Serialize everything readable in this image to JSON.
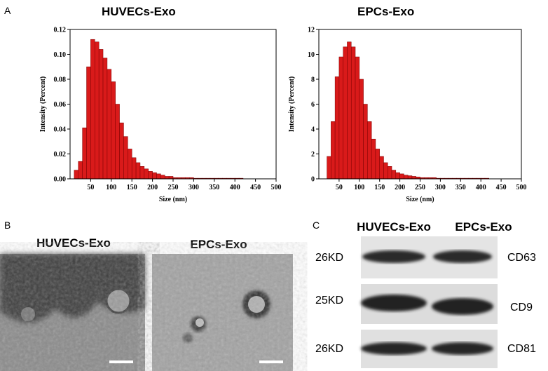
{
  "panel_labels": [
    "A",
    "B",
    "C"
  ],
  "chart_data": [
    {
      "type": "histogram",
      "title": "HUVECs-Exo",
      "xlabel": "Size (nm)",
      "ylabel": "Intensity (Percent)",
      "color": "#d91a1a",
      "bins": [
        10,
        20,
        30,
        40,
        50,
        60,
        70,
        80,
        90,
        100,
        110,
        120,
        130,
        140,
        150,
        160,
        170,
        180,
        190,
        200,
        210,
        220,
        230,
        240,
        250,
        260,
        270,
        280,
        290,
        300,
        310,
        320,
        330,
        340,
        350,
        360,
        370,
        380,
        390,
        400,
        410,
        420
      ],
      "values": [
        0.007,
        0.014,
        0.041,
        0.09,
        0.112,
        0.11,
        0.104,
        0.097,
        0.088,
        0.078,
        0.06,
        0.045,
        0.034,
        0.024,
        0.017,
        0.013,
        0.01,
        0.008,
        0.006,
        0.005,
        0.004,
        0.003,
        0.002,
        0.002,
        0.001,
        0.001,
        0.001,
        0.001,
        0.001,
        0.0005,
        0.0005,
        0.0005,
        0.0005,
        0.0005,
        0.0005,
        0.0005,
        0.0005,
        0.0005,
        0.0005,
        0.0005,
        0.0005
      ],
      "xlim": [
        0,
        500
      ],
      "xticks": [
        50,
        100,
        150,
        200,
        250,
        300,
        350,
        400,
        450,
        500
      ],
      "ylim": [
        0,
        0.12
      ],
      "yticks": [
        {
          "value": 0,
          "label": "0.00"
        },
        0.02,
        0.04,
        0.06,
        0.08,
        {
          "value": 0.1,
          "label": "0.10"
        },
        0.12
      ]
    },
    {
      "type": "histogram",
      "title": "EPCs-Exo",
      "xlabel": "Size (nm)",
      "ylabel": "Intensity (Percent)",
      "color": "#d91a1a",
      "bins": [
        20,
        30,
        40,
        50,
        60,
        70,
        80,
        90,
        100,
        110,
        120,
        130,
        140,
        150,
        160,
        170,
        180,
        190,
        200,
        210,
        220,
        230,
        240,
        250,
        260,
        270,
        280,
        290,
        300,
        310,
        320,
        330,
        340,
        350,
        360,
        370,
        380,
        390,
        400,
        410,
        420
      ],
      "values": [
        1.8,
        4.6,
        8.2,
        9.8,
        10.6,
        11.0,
        10.6,
        9.8,
        8.0,
        6.0,
        4.6,
        3.2,
        2.4,
        1.8,
        1.3,
        1.0,
        0.7,
        0.5,
        0.4,
        0.3,
        0.25,
        0.2,
        0.15,
        0.1,
        0.1,
        0.1,
        0.1,
        0.05,
        0.05,
        0.05,
        0.05,
        0.05,
        0.05,
        0.05,
        0.05,
        0.05,
        0.05,
        0.05,
        0.05,
        0.05
      ],
      "xlim": [
        0,
        500
      ],
      "xticks": [
        50,
        100,
        150,
        200,
        250,
        300,
        350,
        400,
        450,
        500
      ],
      "ylim": [
        0,
        12
      ],
      "yticks": [
        0,
        2,
        4,
        6,
        8,
        10,
        12
      ]
    }
  ],
  "micrographs": [
    {
      "title": "HUVECs-Exo"
    },
    {
      "title": "EPCs-Exo"
    }
  ],
  "western_blot": {
    "columns": [
      "HUVECs-Exo",
      "EPCs-Exo"
    ],
    "rows": [
      {
        "weight": "26KD",
        "marker": "CD63"
      },
      {
        "weight": "25KD",
        "marker": "CD9"
      },
      {
        "weight": "26KD",
        "marker": "CD81"
      }
    ]
  }
}
